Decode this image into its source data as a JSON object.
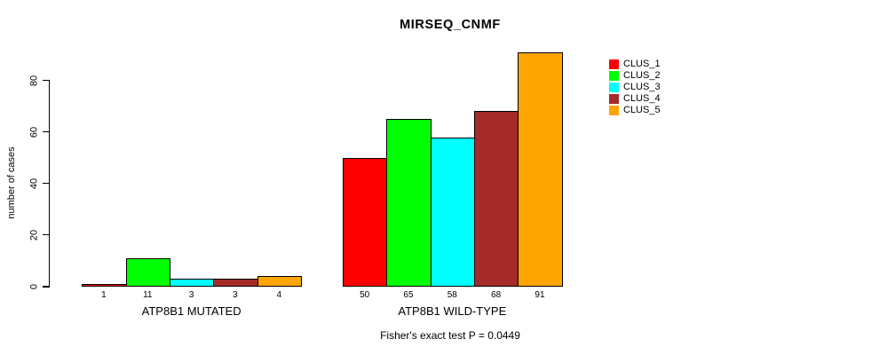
{
  "chart_data": {
    "type": "bar",
    "title": "MIRSEQ_CNMF",
    "ylabel": "number of cases",
    "xlabel": "",
    "caption": "Fisher's exact test P = 0.0449",
    "y_ticks": [
      0,
      20,
      40,
      60,
      80
    ],
    "ylim": [
      0,
      91
    ],
    "grid": false,
    "legend_position": "right-inside",
    "background_color": "#ffffff",
    "series": [
      {
        "name": "CLUS_1",
        "color": "#ff0000"
      },
      {
        "name": "CLUS_2",
        "color": "#00ff00"
      },
      {
        "name": "CLUS_3",
        "color": "#00ffff"
      },
      {
        "name": "CLUS_4",
        "color": "#a52a2a"
      },
      {
        "name": "CLUS_5",
        "color": "#ffa500"
      }
    ],
    "groups": [
      {
        "label": "ATP8B1 MUTATED",
        "values": [
          1,
          11,
          3,
          3,
          4
        ]
      },
      {
        "label": "ATP8B1 WILD-TYPE",
        "values": [
          50,
          65,
          58,
          68,
          91
        ]
      }
    ],
    "bar_value_labels_visible": true
  }
}
